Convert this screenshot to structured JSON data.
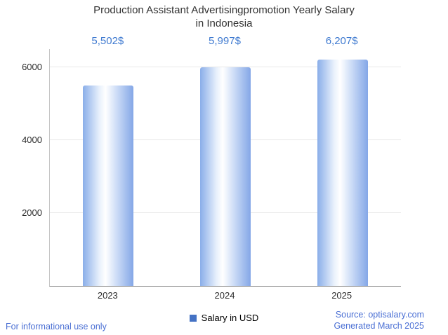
{
  "title": {
    "line1": "Production Assistant Advertisingpromotion Yearly Salary",
    "line2": "in Indonesia"
  },
  "chart_data": {
    "type": "bar",
    "title": "Production Assistant Advertisingpromotion Yearly Salary in Indonesia",
    "categories": [
      "2023",
      "2024",
      "2025"
    ],
    "series": [
      {
        "name": "Salary in USD",
        "values": [
          5502,
          5997,
          6207
        ]
      }
    ],
    "value_labels": [
      "5,502$",
      "5,997$",
      "6,207$"
    ],
    "xlabel": "",
    "ylabel": "",
    "ylim": [
      0,
      6500
    ],
    "yticks": [
      2000,
      4000,
      6000
    ],
    "grid": true,
    "legend_position": "bottom"
  },
  "legend": {
    "label": "Salary in USD"
  },
  "footer": {
    "disclaimer": "For informational use only",
    "source": "Source: optisalary.com",
    "generated": "Generated March 2025"
  },
  "colors": {
    "title_text": "#333333",
    "value_label": "#3f7ad0",
    "bar_edge_blue": "#84a7e7",
    "bar_center": "#ffffff",
    "legend_marker": "#4472c4",
    "footer_link": "#4a6fd4",
    "gridline": "#e8e8e8",
    "axis_line": "#949494"
  }
}
